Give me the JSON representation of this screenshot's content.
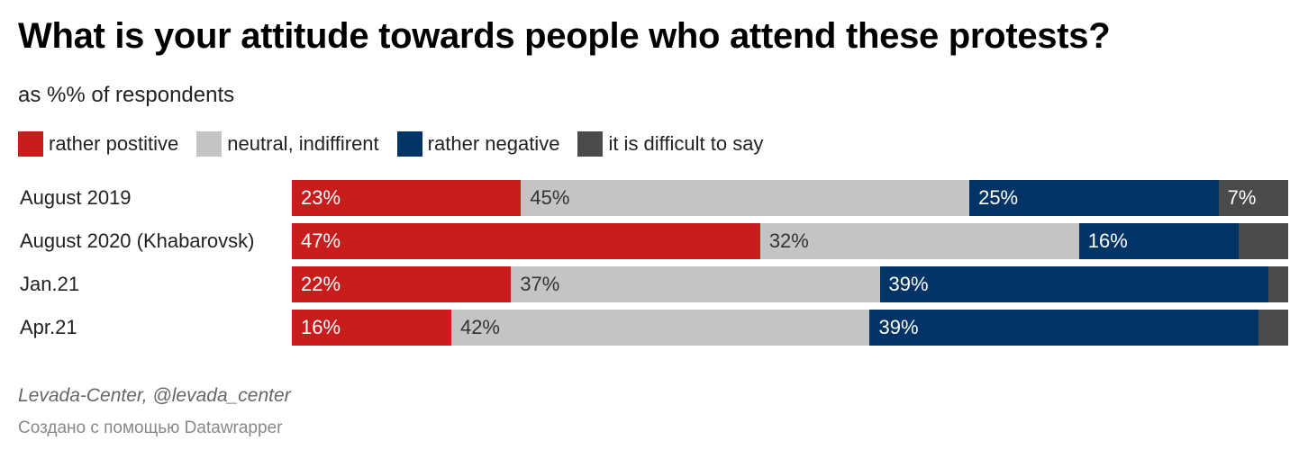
{
  "header": {
    "title": "What is your attitude towards people who attend these protests?",
    "subtitle": "as %% of respondents"
  },
  "legend": [
    {
      "label": "rather postitive",
      "color": "#c71e1d"
    },
    {
      "label": "neutral, indiffirent",
      "color": "#c4c4c4"
    },
    {
      "label": "rather negative",
      "color": "#003366"
    },
    {
      "label": "it is difficult to say",
      "color": "#4a4a4a"
    }
  ],
  "chart_data": {
    "type": "bar",
    "orientation": "horizontal",
    "stacked": true,
    "unit": "%",
    "categories": [
      "August 2019",
      "August 2020 (Khabarovsk)",
      "Jan.21",
      "Apr.21"
    ],
    "series": [
      {
        "name": "rather postitive",
        "color": "#c71e1d",
        "values": [
          23,
          47,
          22,
          16
        ],
        "labels": [
          "23%",
          "47%",
          "22%",
          "16%"
        ]
      },
      {
        "name": "neutral, indiffirent",
        "color": "#c4c4c4",
        "values": [
          45,
          32,
          37,
          42
        ],
        "labels": [
          "45%",
          "32%",
          "37%",
          "42%"
        ]
      },
      {
        "name": "rather negative",
        "color": "#003366",
        "values": [
          25,
          16,
          39,
          39
        ],
        "labels": [
          "25%",
          "16%",
          "39%",
          "39%"
        ]
      },
      {
        "name": "it is difficult to say",
        "color": "#4a4a4a",
        "values": [
          7,
          5,
          2,
          3
        ],
        "labels": [
          "7%",
          "",
          "",
          ""
        ]
      }
    ]
  },
  "footer": {
    "source": "Levada-Center, @levada_center",
    "credit": "Создано с помощью Datawrapper"
  }
}
